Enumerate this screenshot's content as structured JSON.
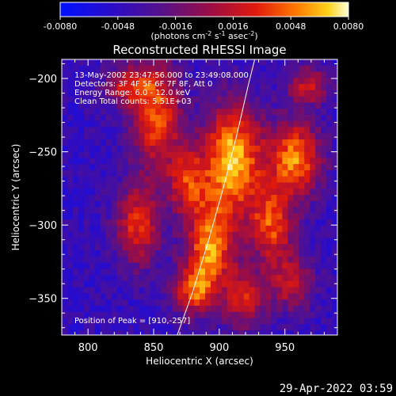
{
  "chart_data": {
    "type": "heatmap",
    "title": "Reconstructed RHESSI Image",
    "xlabel": "Heliocentric X (arcsec)",
    "ylabel": "Heliocentric Y (arcsec)",
    "xlim": [
      780,
      990
    ],
    "ylim": [
      -375,
      -187
    ],
    "x_ticks": [
      800,
      850,
      900,
      950
    ],
    "y_ticks": [
      -200,
      -250,
      -300,
      -350
    ],
    "colorbar": {
      "range": [
        -0.008,
        0.008
      ],
      "ticks": [
        "-0.0080",
        "-0.0048",
        "-0.0016",
        "0.0016",
        "0.0048",
        "0.0080"
      ],
      "label_main": "(photons cm",
      "label_sup1": "-2",
      "label_mid1": " s",
      "label_sup2": "-1",
      "label_mid2": " asec",
      "label_sup3": "-2",
      "label_end": ")"
    },
    "info_lines": [
      "13-May-2002 23:47:56.000 to 23:49:08.000",
      "Detectors: 3F 4F 5F 6F 7F 8F, Att 0",
      "Energy Range: 6.0 - 12.0 keV",
      "Clean     Total counts: 5.51E+03"
    ],
    "peak_text": "Position of Peak = [910,-257]",
    "peak": [
      910,
      -257
    ],
    "limb_curve": [
      [
        868,
        -375
      ],
      [
        880,
        -345
      ],
      [
        892,
        -310
      ],
      [
        903,
        -275
      ],
      [
        913,
        -240
      ],
      [
        922,
        -205
      ],
      [
        927,
        -187
      ]
    ],
    "sources": [
      {
        "x": 910,
        "y": -255,
        "sx": 16,
        "sy": 26,
        "amp": 1.0
      },
      {
        "x": 893,
        "y": -315,
        "sx": 13,
        "sy": 22,
        "amp": 0.85
      },
      {
        "x": 880,
        "y": -345,
        "sx": 11,
        "sy": 12,
        "amp": 0.65
      },
      {
        "x": 852,
        "y": -225,
        "sx": 13,
        "sy": 26,
        "amp": 0.75
      },
      {
        "x": 838,
        "y": -300,
        "sx": 12,
        "sy": 20,
        "amp": 0.65
      },
      {
        "x": 830,
        "y": -205,
        "sx": 12,
        "sy": 10,
        "amp": 0.55
      },
      {
        "x": 958,
        "y": -255,
        "sx": 14,
        "sy": 18,
        "amp": 0.85
      },
      {
        "x": 940,
        "y": -300,
        "sx": 12,
        "sy": 18,
        "amp": 0.7
      },
      {
        "x": 920,
        "y": -350,
        "sx": 11,
        "sy": 14,
        "amp": 0.6
      },
      {
        "x": 968,
        "y": -205,
        "sx": 11,
        "sy": 9,
        "amp": 0.55
      },
      {
        "x": 955,
        "y": -340,
        "sx": 12,
        "sy": 14,
        "amp": 0.5
      },
      {
        "x": 875,
        "y": -270,
        "sx": 10,
        "sy": 16,
        "amp": 0.6
      }
    ],
    "footer_stamp": "29-Apr-2022 03:59"
  }
}
